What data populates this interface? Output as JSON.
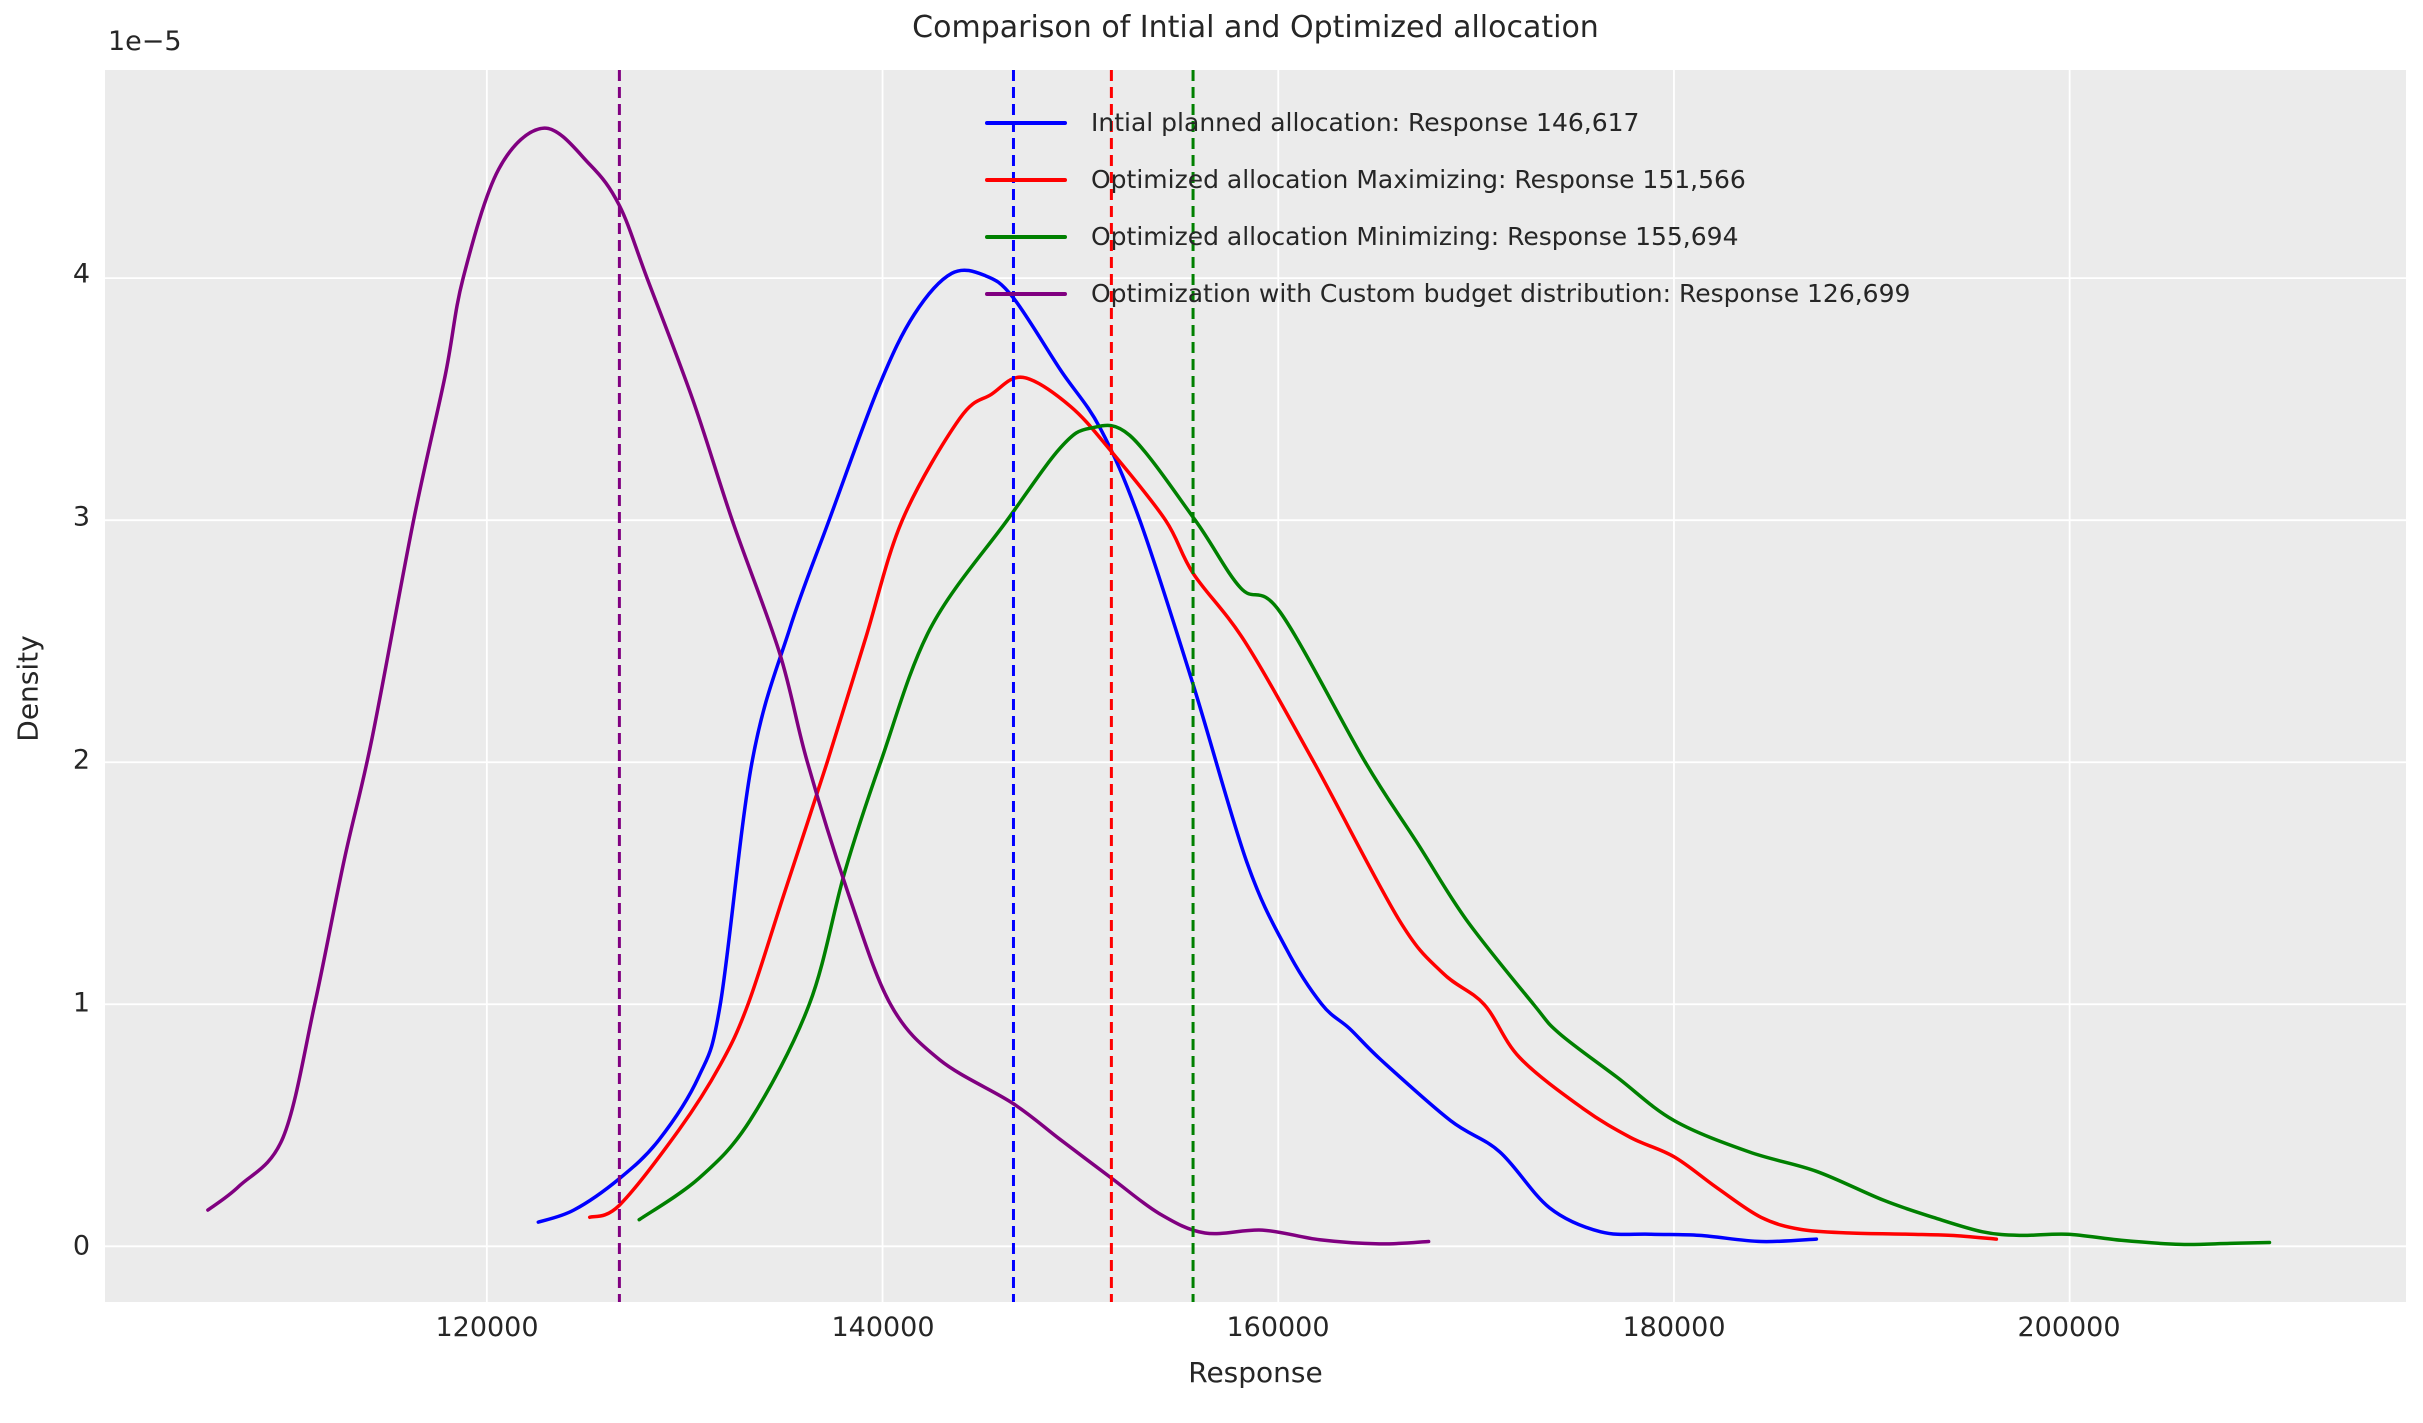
{
  "title": "Comparison of Intial and Optimized allocation",
  "colors": {
    "axes_background": "#EBEBEB",
    "grid": "#FFFFFF",
    "text": "#262626",
    "initial_blue": "#0000FF",
    "maximizing_red": "#FF0000",
    "minimizing_green": "#008000",
    "custom_purple": "#800080"
  },
  "axes": {
    "offset_text": "1e−5",
    "xlabel": "Response",
    "ylabel": "Density",
    "xlim": [
      100700,
      217000
    ],
    "ylim": [
      -0.23,
      4.86
    ],
    "x_ticks": [
      120000,
      140000,
      160000,
      180000,
      200000
    ],
    "x_tick_labels": [
      "120000",
      "140000",
      "160000",
      "180000",
      "200000"
    ],
    "y_ticks": [
      0,
      1,
      2,
      3,
      4
    ],
    "y_tick_labels": [
      "0",
      "1",
      "2",
      "3",
      "4"
    ],
    "grid": true,
    "y_scale_note": "density values in units of 1e-5"
  },
  "legend": {
    "position": "upper center-right",
    "entries": [
      {
        "label": "Intial planned allocation: Response 146,617",
        "color": "#0000FF"
      },
      {
        "label": "Optimized allocation Maximizing: Response 151,566",
        "color": "#FF0000"
      },
      {
        "label": "Optimized allocation Minimizing: Response 155,694",
        "color": "#008000"
      },
      {
        "label": "Optimization with Custom budget distribution: Response 126,699",
        "color": "#800080"
      }
    ]
  },
  "chart_data": {
    "type": "line",
    "title": "Comparison of Intial and Optimized allocation",
    "xlabel": "Response",
    "ylabel": "Density",
    "ylim": [
      -0.23,
      4.86
    ],
    "xlim": [
      100700,
      217000
    ],
    "note": "KDE density curves; y values are density multiplied by 1e5; dashed vertical line at each series mean response",
    "series": [
      {
        "name": "Intial planned allocation",
        "response": 146617,
        "vline_x": 146617,
        "color": "#0000FF",
        "points": [
          [
            122600,
            0.1
          ],
          [
            124400,
            0.15
          ],
          [
            126700,
            0.28
          ],
          [
            128700,
            0.44
          ],
          [
            130700,
            0.7
          ],
          [
            131800,
            1.0
          ],
          [
            133400,
            2.0
          ],
          [
            135300,
            2.55
          ],
          [
            137300,
            3.0
          ],
          [
            139800,
            3.55
          ],
          [
            141600,
            3.85
          ],
          [
            143500,
            4.02
          ],
          [
            145200,
            4.01
          ],
          [
            146600,
            3.92
          ],
          [
            149000,
            3.62
          ],
          [
            151000,
            3.38
          ],
          [
            153000,
            3.0
          ],
          [
            155700,
            2.32
          ],
          [
            158400,
            1.59
          ],
          [
            160400,
            1.23
          ],
          [
            162200,
            1.0
          ],
          [
            163600,
            0.9
          ],
          [
            165200,
            0.77
          ],
          [
            168700,
            0.52
          ],
          [
            171200,
            0.39
          ],
          [
            173700,
            0.16
          ],
          [
            176300,
            0.06
          ],
          [
            178800,
            0.05
          ],
          [
            181300,
            0.045
          ],
          [
            184400,
            0.02
          ],
          [
            187200,
            0.03
          ]
        ]
      },
      {
        "name": "Optimized allocation Maximizing",
        "response": 151566,
        "vline_x": 151566,
        "color": "#FF0000",
        "points": [
          [
            125200,
            0.12
          ],
          [
            126700,
            0.17
          ],
          [
            129700,
            0.48
          ],
          [
            131800,
            0.75
          ],
          [
            133200,
            1.0
          ],
          [
            135000,
            1.45
          ],
          [
            137200,
            2.0
          ],
          [
            139100,
            2.5
          ],
          [
            141000,
            3.0
          ],
          [
            143900,
            3.42
          ],
          [
            145500,
            3.52
          ],
          [
            147100,
            3.59
          ],
          [
            149500,
            3.47
          ],
          [
            151600,
            3.28
          ],
          [
            154300,
            3.0
          ],
          [
            155700,
            2.78
          ],
          [
            158300,
            2.5
          ],
          [
            161800,
            2.0
          ],
          [
            166100,
            1.35
          ],
          [
            168300,
            1.13
          ],
          [
            170400,
            1.0
          ],
          [
            172200,
            0.78
          ],
          [
            175400,
            0.57
          ],
          [
            177800,
            0.45
          ],
          [
            180000,
            0.37
          ],
          [
            182200,
            0.24
          ],
          [
            184400,
            0.12
          ],
          [
            186400,
            0.07
          ],
          [
            188900,
            0.055
          ],
          [
            191900,
            0.05
          ],
          [
            194000,
            0.045
          ],
          [
            196300,
            0.03
          ]
        ]
      },
      {
        "name": "Optimized allocation Minimizing",
        "response": 155694,
        "vline_x": 155694,
        "color": "#008000",
        "points": [
          [
            127700,
            0.11
          ],
          [
            130700,
            0.28
          ],
          [
            133300,
            0.52
          ],
          [
            136300,
            1.0
          ],
          [
            138100,
            1.55
          ],
          [
            139900,
            2.0
          ],
          [
            142400,
            2.55
          ],
          [
            146300,
            3.0
          ],
          [
            149000,
            3.3
          ],
          [
            150500,
            3.38
          ],
          [
            152500,
            3.35
          ],
          [
            155800,
            3.0
          ],
          [
            158100,
            2.72
          ],
          [
            160100,
            2.62
          ],
          [
            164400,
            2.0
          ],
          [
            167000,
            1.67
          ],
          [
            169500,
            1.35
          ],
          [
            172900,
            1.0
          ],
          [
            174200,
            0.88
          ],
          [
            177100,
            0.7
          ],
          [
            180000,
            0.52
          ],
          [
            183800,
            0.39
          ],
          [
            187200,
            0.31
          ],
          [
            190600,
            0.19
          ],
          [
            193100,
            0.12
          ],
          [
            195600,
            0.06
          ],
          [
            197500,
            0.045
          ],
          [
            199900,
            0.05
          ],
          [
            202600,
            0.025
          ],
          [
            205600,
            0.008
          ],
          [
            208100,
            0.012
          ],
          [
            210100,
            0.016
          ]
        ]
      },
      {
        "name": "Optimization with Custom budget distribution",
        "response": 126699,
        "vline_x": 126699,
        "color": "#800080",
        "points": [
          [
            105900,
            0.15
          ],
          [
            107500,
            0.25
          ],
          [
            109700,
            0.45
          ],
          [
            111300,
            1.0
          ],
          [
            112800,
            1.6
          ],
          [
            114200,
            2.1
          ],
          [
            116300,
            3.0
          ],
          [
            117900,
            3.6
          ],
          [
            118800,
            4.0
          ],
          [
            120600,
            4.45
          ],
          [
            122900,
            4.62
          ],
          [
            125200,
            4.47
          ],
          [
            126700,
            4.3
          ],
          [
            128100,
            4.0
          ],
          [
            130400,
            3.5
          ],
          [
            132400,
            3.0
          ],
          [
            134800,
            2.45
          ],
          [
            136200,
            2.0
          ],
          [
            138300,
            1.45
          ],
          [
            140400,
            1.0
          ],
          [
            142900,
            0.77
          ],
          [
            146600,
            0.59
          ],
          [
            149000,
            0.44
          ],
          [
            151600,
            0.28
          ],
          [
            154000,
            0.135
          ],
          [
            156300,
            0.055
          ],
          [
            159200,
            0.067
          ],
          [
            162100,
            0.027
          ],
          [
            165100,
            0.01
          ],
          [
            167600,
            0.02
          ]
        ]
      }
    ]
  }
}
